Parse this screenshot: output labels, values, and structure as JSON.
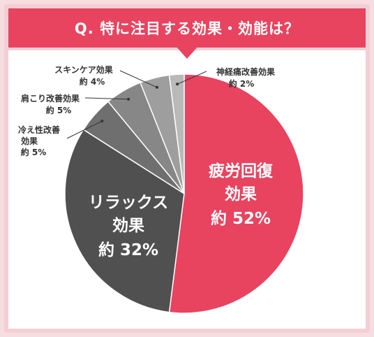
{
  "header": {
    "title": "Q. 特に注目する効果・効能は？"
  },
  "colors": {
    "accent": "#e8435f",
    "slices": [
      "#e8435f",
      "#505050",
      "#6f6f6f",
      "#878787",
      "#9e9e9e",
      "#b9b9b9"
    ]
  },
  "chart_data": {
    "type": "pie",
    "title": "Q. 特に注目する効果・効能は？",
    "start": "12 o'clock, clockwise",
    "slices": [
      {
        "label": "疲労回復効果",
        "value": 52,
        "value_label": "約 52%"
      },
      {
        "label": "リラックス効果",
        "value": 32,
        "value_label": "約 32%"
      },
      {
        "label": "冷え性改善効果",
        "value": 5,
        "value_label": "約 5%"
      },
      {
        "label": "肩こり改善効果",
        "value": 5,
        "value_label": "約 5%"
      },
      {
        "label": "スキンケア効果",
        "value": 4,
        "value_label": "約 4%"
      },
      {
        "label": "神経痛改善効果",
        "value": 2,
        "value_label": "約 2%"
      }
    ]
  }
}
